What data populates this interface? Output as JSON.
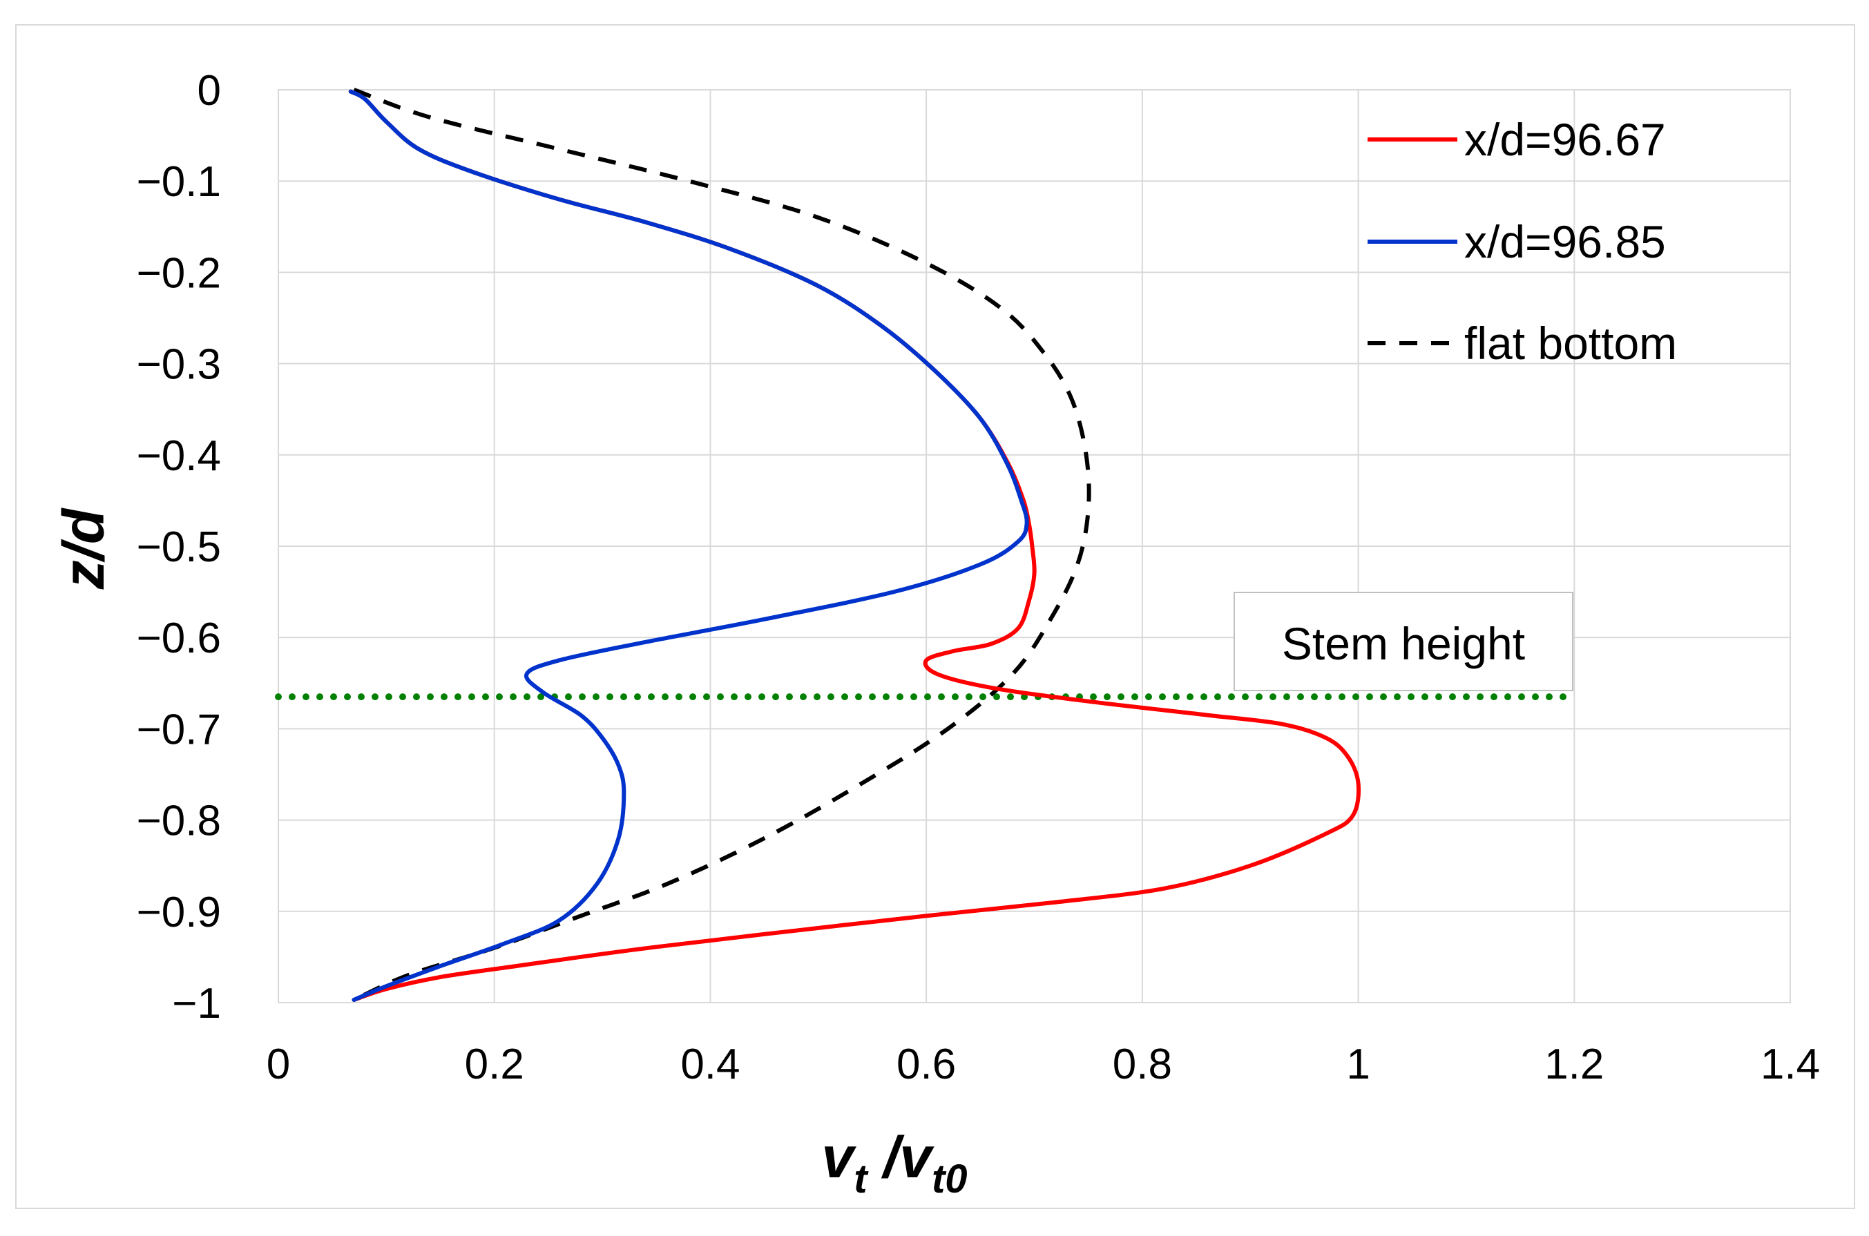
{
  "chart_data": {
    "type": "line",
    "title": "",
    "xlabel": {
      "main": "v",
      "sub": "t",
      "sep": " /",
      "main2": "v",
      "sub2": "t0"
    },
    "ylabel": "z/d",
    "xlim": [
      0,
      1.4
    ],
    "ylim": [
      -1,
      0
    ],
    "x_ticks": [
      0,
      0.2,
      0.4,
      0.6,
      0.8,
      1,
      1.2,
      1.4
    ],
    "x_tick_labels": [
      "0",
      "0.2",
      "0.4",
      "0.6",
      "0.8",
      "1",
      "1.2",
      "1.4"
    ],
    "y_ticks": [
      0,
      -0.1,
      -0.2,
      -0.3,
      -0.4,
      -0.5,
      -0.6,
      -0.7,
      -0.8,
      -0.9,
      -1
    ],
    "y_tick_labels": [
      "0",
      "−0.1",
      "−0.2",
      "−0.3",
      "−0.4",
      "−0.5",
      "−0.6",
      "−0.7",
      "−0.8",
      "−0.9",
      "−1"
    ],
    "grid": true,
    "legend_position": "top-right",
    "series": [
      {
        "name": "x/d=96.67",
        "color": "#ff0000",
        "style": "solid",
        "points": [
          [
            0.067,
            -0.002
          ],
          [
            0.08,
            -0.01
          ],
          [
            0.1,
            -0.035
          ],
          [
            0.13,
            -0.065
          ],
          [
            0.18,
            -0.09
          ],
          [
            0.26,
            -0.12
          ],
          [
            0.34,
            -0.145
          ],
          [
            0.42,
            -0.175
          ],
          [
            0.5,
            -0.215
          ],
          [
            0.56,
            -0.26
          ],
          [
            0.61,
            -0.31
          ],
          [
            0.65,
            -0.36
          ],
          [
            0.676,
            -0.41
          ],
          [
            0.69,
            -0.45
          ],
          [
            0.695,
            -0.475
          ],
          [
            0.698,
            -0.5
          ],
          [
            0.7,
            -0.53
          ],
          [
            0.695,
            -0.56
          ],
          [
            0.685,
            -0.59
          ],
          [
            0.66,
            -0.607
          ],
          [
            0.625,
            -0.615
          ],
          [
            0.6,
            -0.625
          ],
          [
            0.61,
            -0.64
          ],
          [
            0.66,
            -0.655
          ],
          [
            0.75,
            -0.67
          ],
          [
            0.86,
            -0.685
          ],
          [
            0.93,
            -0.695
          ],
          [
            0.97,
            -0.71
          ],
          [
            0.99,
            -0.73
          ],
          [
            1.0,
            -0.76
          ],
          [
            0.995,
            -0.795
          ],
          [
            0.97,
            -0.815
          ],
          [
            0.9,
            -0.85
          ],
          [
            0.82,
            -0.875
          ],
          [
            0.72,
            -0.89
          ],
          [
            0.6,
            -0.905
          ],
          [
            0.45,
            -0.925
          ],
          [
            0.33,
            -0.942
          ],
          [
            0.22,
            -0.96
          ],
          [
            0.15,
            -0.972
          ],
          [
            0.1,
            -0.985
          ],
          [
            0.07,
            -0.997
          ]
        ]
      },
      {
        "name": "x/d=96.85",
        "color": "#0033cc",
        "style": "solid",
        "points": [
          [
            0.067,
            -0.002
          ],
          [
            0.08,
            -0.01
          ],
          [
            0.1,
            -0.035
          ],
          [
            0.13,
            -0.065
          ],
          [
            0.18,
            -0.09
          ],
          [
            0.26,
            -0.12
          ],
          [
            0.34,
            -0.145
          ],
          [
            0.42,
            -0.175
          ],
          [
            0.5,
            -0.215
          ],
          [
            0.56,
            -0.26
          ],
          [
            0.61,
            -0.31
          ],
          [
            0.65,
            -0.36
          ],
          [
            0.675,
            -0.41
          ],
          [
            0.688,
            -0.45
          ],
          [
            0.693,
            -0.475
          ],
          [
            0.685,
            -0.495
          ],
          [
            0.65,
            -0.52
          ],
          [
            0.57,
            -0.55
          ],
          [
            0.45,
            -0.58
          ],
          [
            0.34,
            -0.605
          ],
          [
            0.26,
            -0.625
          ],
          [
            0.23,
            -0.64
          ],
          [
            0.245,
            -0.66
          ],
          [
            0.28,
            -0.685
          ],
          [
            0.3,
            -0.71
          ],
          [
            0.315,
            -0.74
          ],
          [
            0.32,
            -0.77
          ],
          [
            0.315,
            -0.82
          ],
          [
            0.295,
            -0.87
          ],
          [
            0.26,
            -0.91
          ],
          [
            0.21,
            -0.935
          ],
          [
            0.15,
            -0.96
          ],
          [
            0.1,
            -0.982
          ],
          [
            0.07,
            -0.997
          ]
        ]
      },
      {
        "name": "flat bottom",
        "color": "#000000",
        "style": "dashed",
        "points": [
          [
            0.07,
            0.0
          ],
          [
            0.14,
            -0.03
          ],
          [
            0.26,
            -0.065
          ],
          [
            0.38,
            -0.1
          ],
          [
            0.5,
            -0.14
          ],
          [
            0.6,
            -0.19
          ],
          [
            0.67,
            -0.24
          ],
          [
            0.71,
            -0.29
          ],
          [
            0.735,
            -0.34
          ],
          [
            0.748,
            -0.4
          ],
          [
            0.75,
            -0.46
          ],
          [
            0.74,
            -0.52
          ],
          [
            0.715,
            -0.58
          ],
          [
            0.68,
            -0.64
          ],
          [
            0.62,
            -0.7
          ],
          [
            0.54,
            -0.76
          ],
          [
            0.45,
            -0.82
          ],
          [
            0.36,
            -0.87
          ],
          [
            0.28,
            -0.905
          ],
          [
            0.2,
            -0.94
          ],
          [
            0.12,
            -0.97
          ],
          [
            0.07,
            -0.997
          ]
        ]
      }
    ],
    "reference_line": {
      "y": -0.665,
      "x_range": [
        0,
        1.2
      ],
      "color": "#008000",
      "style": "dotted"
    },
    "annotation": {
      "text": "Stem height",
      "anchor_x": 1.05,
      "anchor_y": -0.61
    }
  }
}
